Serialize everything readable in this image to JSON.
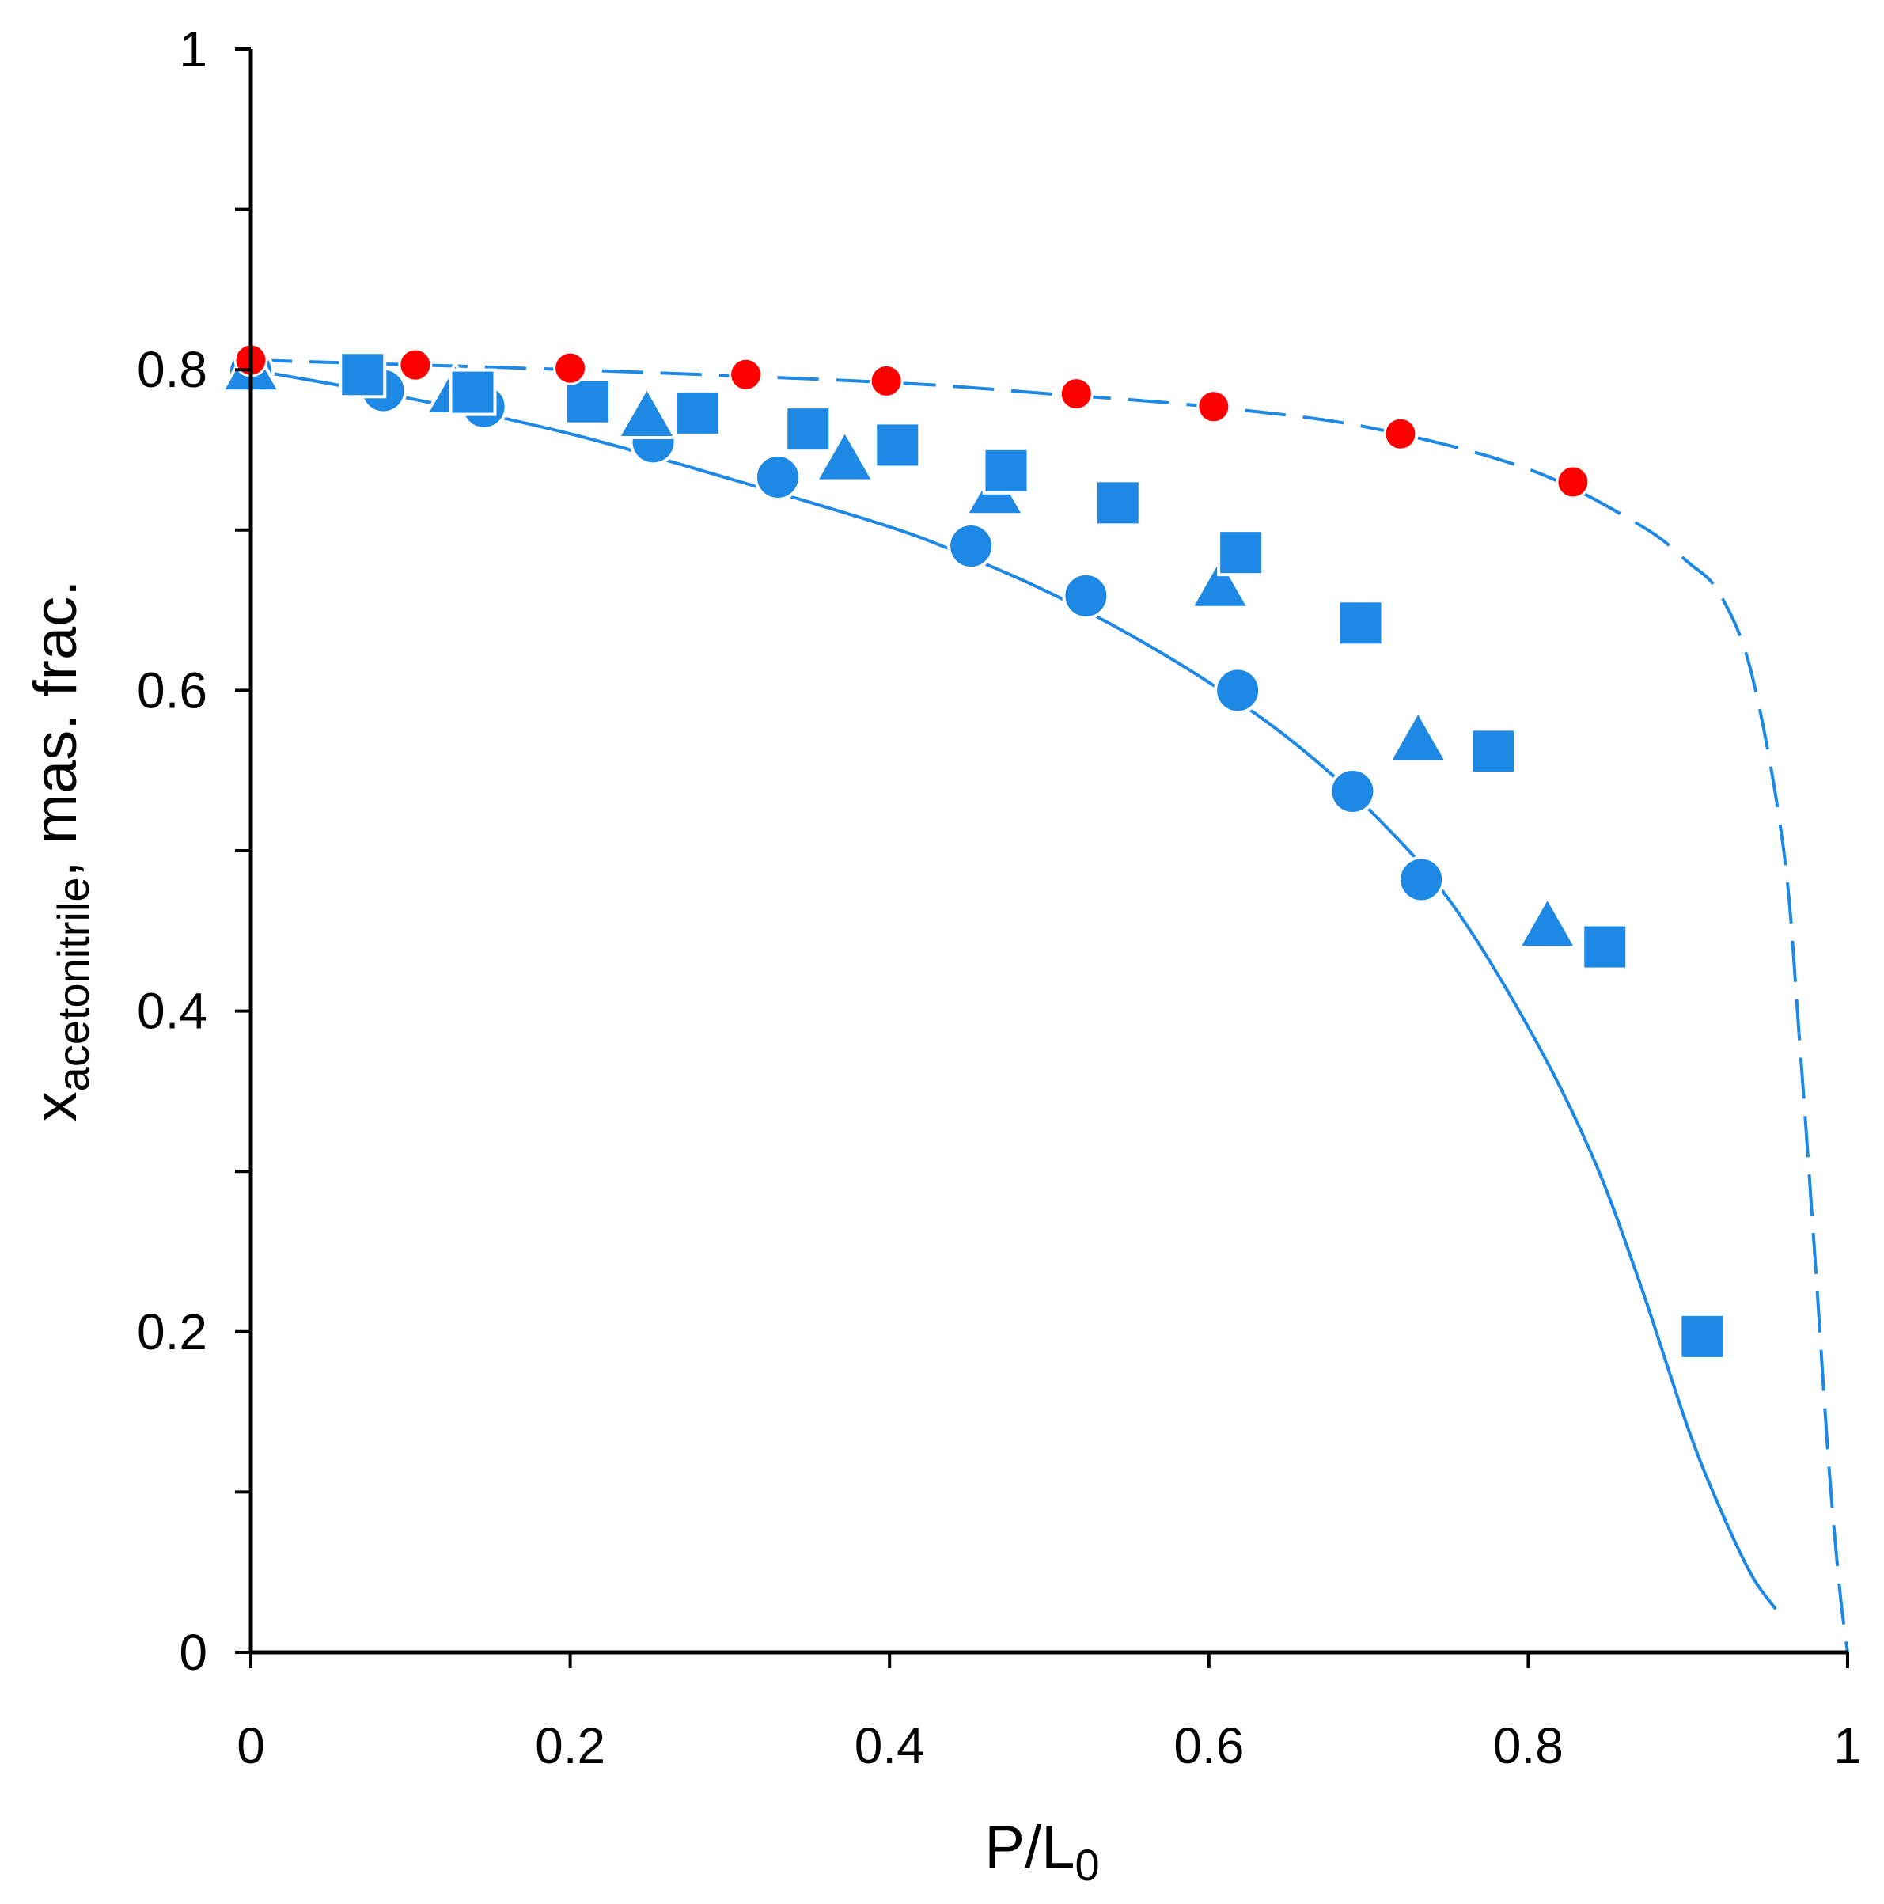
{
  "chart_data": {
    "type": "scatter",
    "title": "",
    "xlabel": "P/L",
    "xlabel_subscript": "0",
    "ylabel_main": "x",
    "ylabel_subscript": "acetonitrile",
    "ylabel_suffix": ", mas. frac.",
    "xlim": [
      0,
      1
    ],
    "ylim": [
      0,
      1
    ],
    "grid": false,
    "x_ticks": [
      {
        "value": 0,
        "label": "0"
      },
      {
        "value": 0.2,
        "label": "0.2"
      },
      {
        "value": 0.4,
        "label": "0.4"
      },
      {
        "value": 0.6,
        "label": "0.6"
      },
      {
        "value": 0.8,
        "label": "0.8"
      },
      {
        "value": 1,
        "label": "1"
      }
    ],
    "y_ticks": [
      {
        "value": 0,
        "label": "0"
      },
      {
        "value": 0.1,
        "label": ""
      },
      {
        "value": 0.2,
        "label": "0.2"
      },
      {
        "value": 0.3,
        "label": ""
      },
      {
        "value": 0.4,
        "label": "0.4"
      },
      {
        "value": 0.5,
        "label": ""
      },
      {
        "value": 0.6,
        "label": "0.6"
      },
      {
        "value": 0.7,
        "label": ""
      },
      {
        "value": 0.8,
        "label": "0.8"
      },
      {
        "value": 0.9,
        "label": ""
      },
      {
        "value": 1,
        "label": "1"
      }
    ],
    "series": [
      {
        "name": "blue circles",
        "marker": "circle",
        "color": "#1E88E5",
        "outline": "#ffffff",
        "points": [
          [
            0.0,
            0.799
          ],
          [
            0.083,
            0.787
          ],
          [
            0.146,
            0.777
          ],
          [
            0.252,
            0.755
          ],
          [
            0.33,
            0.733
          ],
          [
            0.451,
            0.69
          ],
          [
            0.523,
            0.659
          ],
          [
            0.618,
            0.6
          ],
          [
            0.69,
            0.537
          ],
          [
            0.733,
            0.482
          ]
        ]
      },
      {
        "name": "blue triangles",
        "marker": "triangle",
        "color": "#1E88E5",
        "outline": "#ffffff",
        "points": [
          [
            0.0,
            0.8
          ],
          [
            0.128,
            0.786
          ],
          [
            0.248,
            0.771
          ],
          [
            0.372,
            0.744
          ],
          [
            0.466,
            0.723
          ],
          [
            0.607,
            0.665
          ],
          [
            0.731,
            0.569
          ],
          [
            0.812,
            0.453
          ]
        ]
      },
      {
        "name": "blue squares",
        "marker": "square",
        "color": "#1E88E5",
        "outline": "#ffffff",
        "points": [
          [
            0.07,
            0.797
          ],
          [
            0.139,
            0.786
          ],
          [
            0.211,
            0.78
          ],
          [
            0.28,
            0.773
          ],
          [
            0.349,
            0.763
          ],
          [
            0.405,
            0.753
          ],
          [
            0.473,
            0.737
          ],
          [
            0.543,
            0.717
          ],
          [
            0.62,
            0.686
          ],
          [
            0.695,
            0.642
          ],
          [
            0.778,
            0.562
          ],
          [
            0.848,
            0.44
          ],
          [
            0.909,
            0.197
          ]
        ]
      },
      {
        "name": "red circles",
        "marker": "circle",
        "color": "#FF0000",
        "outline": "#ffffff",
        "points": [
          [
            0.0,
            0.806
          ],
          [
            0.103,
            0.803
          ],
          [
            0.2,
            0.801
          ],
          [
            0.31,
            0.797
          ],
          [
            0.398,
            0.793
          ],
          [
            0.517,
            0.785
          ],
          [
            0.603,
            0.777
          ],
          [
            0.72,
            0.76
          ],
          [
            0.828,
            0.73
          ]
        ]
      }
    ],
    "curves": [
      {
        "name": "solid model curve",
        "style": "solid",
        "color": "#1E88E5",
        "points": [
          [
            0.0,
            0.8
          ],
          [
            0.1,
            0.782
          ],
          [
            0.2,
            0.76
          ],
          [
            0.3,
            0.732
          ],
          [
            0.4,
            0.702
          ],
          [
            0.45,
            0.683
          ],
          [
            0.5,
            0.661
          ],
          [
            0.55,
            0.635
          ],
          [
            0.6,
            0.605
          ],
          [
            0.65,
            0.57
          ],
          [
            0.7,
            0.526
          ],
          [
            0.75,
            0.47
          ],
          [
            0.8,
            0.39
          ],
          [
            0.84,
            0.31
          ],
          [
            0.87,
            0.23
          ],
          [
            0.9,
            0.14
          ],
          [
            0.92,
            0.09
          ],
          [
            0.94,
            0.048
          ],
          [
            0.955,
            0.027
          ]
        ]
      },
      {
        "name": "dashed model curve",
        "style": "dashed",
        "color": "#1E88E5",
        "points": [
          [
            0.0,
            0.806
          ],
          [
            0.2,
            0.8
          ],
          [
            0.4,
            0.792
          ],
          [
            0.5,
            0.785
          ],
          [
            0.6,
            0.777
          ],
          [
            0.7,
            0.764
          ],
          [
            0.8,
            0.738
          ],
          [
            0.87,
            0.703
          ],
          [
            0.9,
            0.68
          ],
          [
            0.92,
            0.66
          ],
          [
            0.94,
            0.61
          ],
          [
            0.96,
            0.5
          ],
          [
            0.97,
            0.38
          ],
          [
            0.98,
            0.24
          ],
          [
            0.988,
            0.12
          ],
          [
            0.995,
            0.04
          ],
          [
            1.0,
            0.0
          ]
        ]
      }
    ]
  }
}
